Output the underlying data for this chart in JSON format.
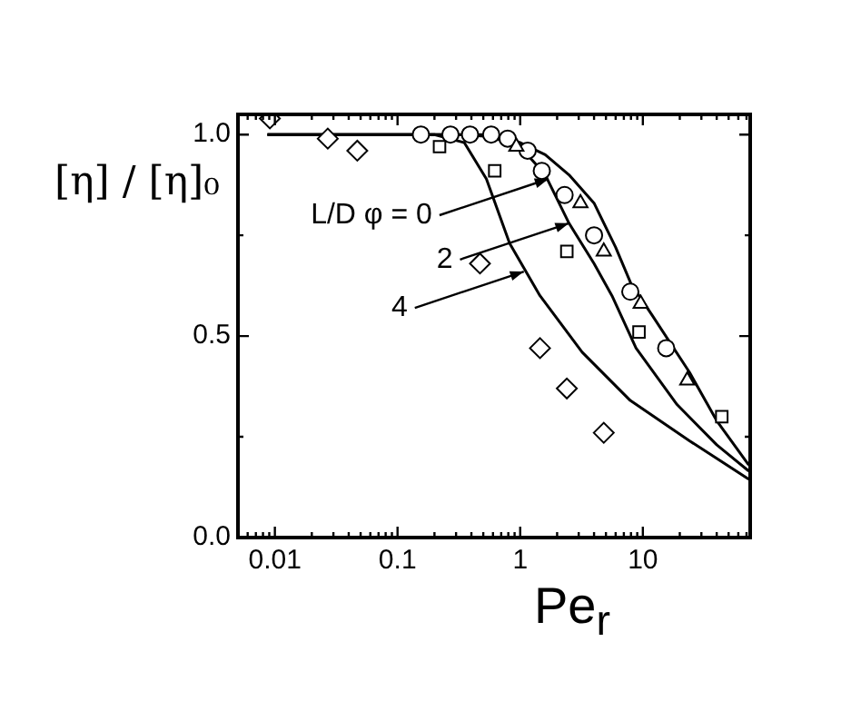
{
  "chart_data": {
    "type": "line",
    "xlabel": "Pe$_{r}$",
    "ylabel": "[η] / [η]₀",
    "log": "x",
    "grid": false,
    "legend": false,
    "xlim": [
      0.005,
      75
    ],
    "ylim": [
      0,
      1.05
    ],
    "xticks": [
      {
        "value": 0.006,
        "label": null
      },
      {
        "value": 0.007,
        "label": null
      },
      {
        "value": 0.008,
        "label": null
      },
      {
        "value": 0.009,
        "label": null
      },
      0.01,
      {
        "value": 0.02,
        "label": null
      },
      {
        "value": 0.03,
        "label": null
      },
      {
        "value": 0.04,
        "label": null
      },
      {
        "value": 0.05,
        "label": null
      },
      {
        "value": 0.06,
        "label": null
      },
      {
        "value": 0.07,
        "label": null
      },
      {
        "value": 0.08,
        "label": null
      },
      {
        "value": 0.09,
        "label": null
      },
      0.1,
      {
        "value": 0.2,
        "label": null
      },
      {
        "value": 0.3,
        "label": null
      },
      {
        "value": 0.4,
        "label": null
      },
      {
        "value": 0.5,
        "label": null
      },
      {
        "value": 0.6,
        "label": null
      },
      {
        "value": 0.7,
        "label": null
      },
      {
        "value": 0.8,
        "label": null
      },
      {
        "value": 0.9,
        "label": null
      },
      1,
      {
        "value": 2,
        "label": null
      },
      {
        "value": 3,
        "label": null
      },
      {
        "value": 4,
        "label": null
      },
      {
        "value": 5,
        "label": null
      },
      {
        "value": 6,
        "label": null
      },
      {
        "value": 7,
        "label": null
      },
      {
        "value": 8,
        "label": null
      },
      {
        "value": 9,
        "label": null
      },
      10,
      {
        "value": 20,
        "label": null
      },
      {
        "value": 30,
        "label": null
      },
      {
        "value": 40,
        "label": null
      },
      {
        "value": 50,
        "label": null
      },
      {
        "value": 60,
        "label": null
      },
      {
        "value": 70,
        "label": null
      }
    ],
    "yticks": [
      {
        "value": 0,
        "label": "0.0"
      },
      {
        "value": 0.25,
        "label": null
      },
      {
        "value": 0.5,
        "label": "0.5"
      },
      {
        "value": 0.75,
        "label": null
      },
      {
        "value": 1,
        "label": "1.0"
      }
    ],
    "series": [
      {
        "color": "#000000",
        "marker": "none",
        "x": [
          0.0087,
          0.3,
          0.6,
          1.0,
          1.6,
          2.5,
          4,
          6,
          8,
          12,
          24,
          40,
          73
        ],
        "values": [
          1.0,
          1.0,
          0.995,
          0.98,
          0.95,
          0.9,
          0.83,
          0.72,
          0.63,
          0.55,
          0.41,
          0.29,
          0.18
        ]
      },
      {
        "color": "#000000",
        "marker": "none",
        "x": [
          0.0087,
          0.5,
          1.0,
          1.6,
          2.5,
          4,
          5.6,
          8.8,
          19,
          40,
          73
        ],
        "values": [
          1.0,
          1.0,
          0.97,
          0.9,
          0.78,
          0.68,
          0.6,
          0.47,
          0.33,
          0.23,
          0.165
        ]
      },
      {
        "color": "#000000",
        "marker": "none",
        "x": [
          0.0087,
          0.2,
          0.35,
          0.53,
          0.82,
          1.45,
          3.2,
          7.9,
          24,
          73
        ],
        "values": [
          1.0,
          1.0,
          0.98,
          0.89,
          0.73,
          0.6,
          0.46,
          0.34,
          0.24,
          0.145
        ]
      },
      {
        "type": "scatter",
        "color": "#000000",
        "marker": "circle",
        "x": [
          0.155,
          0.27,
          0.39,
          0.58,
          0.79,
          1.15,
          1.5,
          2.3,
          4.0,
          7.9,
          15.5
        ],
        "values": [
          1.0,
          1.0,
          1.0,
          1.0,
          0.99,
          0.96,
          0.91,
          0.85,
          0.75,
          0.61,
          0.47
        ]
      },
      {
        "type": "scatter",
        "color": "#000000",
        "marker": "square",
        "x": [
          0.22,
          0.62,
          2.4,
          9.3,
          44
        ],
        "values": [
          0.97,
          0.91,
          0.71,
          0.51,
          0.3
        ]
      },
      {
        "type": "scatter",
        "color": "#000000",
        "marker": "diamond",
        "x": [
          0.0091,
          0.027,
          0.047,
          0.47,
          1.45,
          2.4,
          4.8
        ],
        "values": [
          1.04,
          0.99,
          0.96,
          0.68,
          0.47,
          0.37,
          0.26
        ]
      },
      {
        "type": "scatter",
        "color": "#000000",
        "marker": "triangle",
        "x": [
          0.93,
          3.1,
          4.8,
          9.6,
          23
        ],
        "values": [
          0.97,
          0.83,
          0.71,
          0.58,
          0.39
        ]
      }
    ],
    "annotations": [
      {
        "text": "L/D φ = 0",
        "x": 1.7,
        "y": 0.89
      },
      {
        "text": "2",
        "x": 2.5,
        "y": 0.78
      },
      {
        "text": "4",
        "x": 1.07,
        "y": 0.66
      }
    ]
  }
}
